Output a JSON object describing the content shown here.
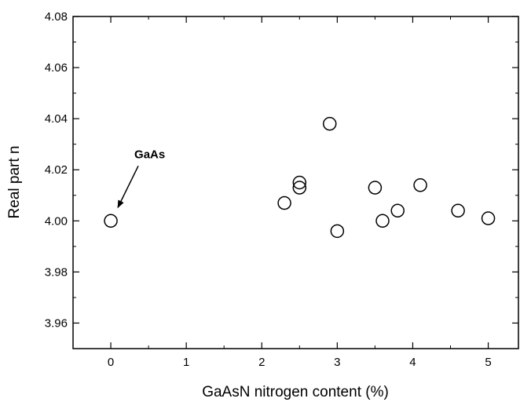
{
  "chart_data": {
    "type": "scatter",
    "title": "",
    "xlabel": "GaAsN nitrogen content (%)",
    "ylabel": "Real part n",
    "xlim": [
      -0.5,
      5.4
    ],
    "ylim": [
      3.95,
      4.08
    ],
    "xticks": [
      0,
      1,
      2,
      3,
      4,
      5
    ],
    "xtick_labels": [
      "0",
      "1",
      "2",
      "3",
      "4",
      "5"
    ],
    "yticks": [
      3.96,
      3.98,
      4.0,
      4.02,
      4.04,
      4.06,
      4.08
    ],
    "ytick_labels": [
      "3.96",
      "3.98",
      "4.00",
      "4.02",
      "4.04",
      "4.06",
      "4.08"
    ],
    "grid": false,
    "marker": "open-circle",
    "series": [
      {
        "x": [
          0,
          2.3,
          2.5,
          2.5,
          2.9,
          3.0,
          3.5,
          3.6,
          3.8,
          4.1,
          4.6,
          5.0
        ],
        "y": [
          4.0,
          4.007,
          4.015,
          4.013,
          4.038,
          3.996,
          4.013,
          4.0,
          4.004,
          4.014,
          4.004,
          4.001
        ]
      }
    ],
    "annotations": [
      {
        "text": "GaAs",
        "points_to": {
          "x": 0,
          "y": 4.0
        }
      }
    ]
  }
}
